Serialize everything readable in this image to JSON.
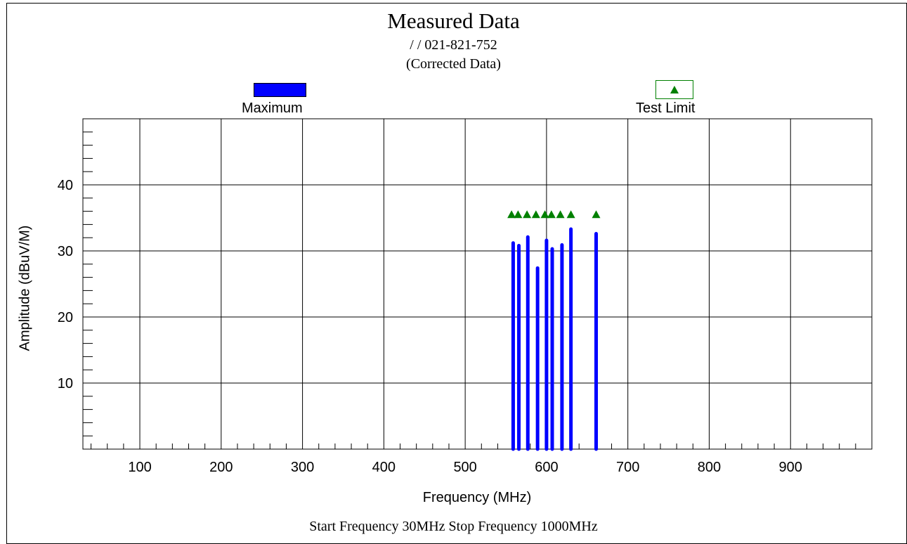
{
  "chart_data": {
    "type": "bar",
    "title": "Measured Data",
    "subtitle": "/ / 021-821-752",
    "subtitle2": "(Corrected Data)",
    "xlabel": "Frequency (MHz)",
    "ylabel": "Amplitude (dBuV/M)",
    "xlim": [
      30,
      1000
    ],
    "ylim": [
      0,
      50
    ],
    "x_ticks": [
      100,
      200,
      300,
      400,
      500,
      600,
      700,
      800,
      900
    ],
    "y_ticks": [
      10,
      20,
      30,
      40
    ],
    "grid": true,
    "legend_position": "top",
    "footer": "Start Frequency 30MHz   Stop Frequency 1000MHz",
    "series": [
      {
        "name": "Maximum",
        "color": "#0000ff",
        "x": [
          559,
          566,
          577,
          589,
          600,
          607,
          619,
          630,
          661
        ],
        "values": [
          31.2,
          30.8,
          32.1,
          27.4,
          31.6,
          30.3,
          30.9,
          33.3,
          32.6
        ]
      },
      {
        "name": "Test Limit",
        "color": "#008000",
        "marker": "triangle",
        "x": [
          557,
          565,
          576,
          587,
          598,
          606,
          617,
          630,
          661
        ],
        "values": [
          35.5,
          35.5,
          35.5,
          35.5,
          35.5,
          35.5,
          35.5,
          35.5,
          35.5
        ]
      }
    ]
  }
}
